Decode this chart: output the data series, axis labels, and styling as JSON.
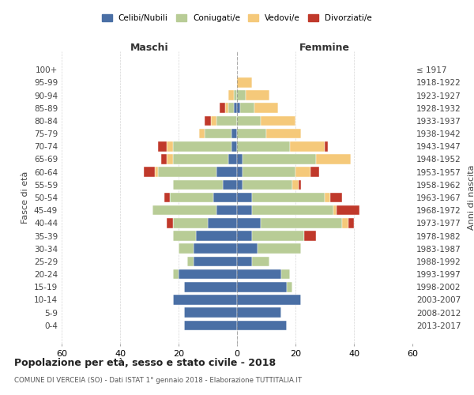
{
  "age_groups": [
    "0-4",
    "5-9",
    "10-14",
    "15-19",
    "20-24",
    "25-29",
    "30-34",
    "35-39",
    "40-44",
    "45-49",
    "50-54",
    "55-59",
    "60-64",
    "65-69",
    "70-74",
    "75-79",
    "80-84",
    "85-89",
    "90-94",
    "95-99",
    "100+"
  ],
  "birth_years": [
    "2013-2017",
    "2008-2012",
    "2003-2007",
    "1998-2002",
    "1993-1997",
    "1988-1992",
    "1983-1987",
    "1978-1982",
    "1973-1977",
    "1968-1972",
    "1963-1967",
    "1958-1962",
    "1953-1957",
    "1948-1952",
    "1943-1947",
    "1938-1942",
    "1933-1937",
    "1928-1932",
    "1923-1927",
    "1918-1922",
    "≤ 1917"
  ],
  "colors": {
    "celibi": "#4a6fa5",
    "coniugati": "#b8cc96",
    "vedovi": "#f5c97a",
    "divorziati": "#c0392b"
  },
  "maschi": {
    "celibi": [
      18,
      18,
      22,
      18,
      20,
      15,
      15,
      14,
      10,
      7,
      8,
      5,
      7,
      3,
      2,
      2,
      0,
      1,
      0,
      0,
      0
    ],
    "coniugati": [
      0,
      0,
      0,
      0,
      2,
      2,
      5,
      8,
      12,
      22,
      15,
      17,
      20,
      19,
      20,
      9,
      7,
      2,
      1,
      0,
      0
    ],
    "vedovi": [
      0,
      0,
      0,
      0,
      0,
      0,
      0,
      0,
      0,
      0,
      0,
      0,
      1,
      2,
      2,
      2,
      2,
      1,
      2,
      0,
      0
    ],
    "divorziati": [
      0,
      0,
      0,
      0,
      0,
      0,
      0,
      0,
      2,
      0,
      2,
      0,
      4,
      2,
      3,
      0,
      2,
      2,
      0,
      0,
      0
    ]
  },
  "femmine": {
    "celibi": [
      17,
      15,
      22,
      17,
      15,
      5,
      7,
      5,
      8,
      5,
      5,
      2,
      2,
      2,
      0,
      0,
      0,
      1,
      0,
      0,
      0
    ],
    "coniugati": [
      0,
      0,
      0,
      2,
      3,
      6,
      15,
      18,
      28,
      28,
      25,
      17,
      18,
      25,
      18,
      10,
      8,
      5,
      3,
      0,
      0
    ],
    "vedovi": [
      0,
      0,
      0,
      0,
      0,
      0,
      0,
      0,
      2,
      1,
      2,
      2,
      5,
      12,
      12,
      12,
      12,
      8,
      8,
      5,
      0
    ],
    "divorziati": [
      0,
      0,
      0,
      0,
      0,
      0,
      0,
      4,
      2,
      8,
      4,
      1,
      3,
      0,
      1,
      0,
      0,
      0,
      0,
      0,
      0
    ]
  },
  "xlim": 60,
  "title": "Popolazione per età, sesso e stato civile - 2018",
  "subtitle": "COMUNE DI VERCEIA (SO) - Dati ISTAT 1° gennaio 2018 - Elaborazione TUTTITALIA.IT",
  "ylabel_left": "Fasce di età",
  "ylabel_right": "Anni di nascita",
  "xlabel_left": "Maschi",
  "xlabel_right": "Femmine",
  "legend_labels": [
    "Celibi/Nubili",
    "Coniugati/e",
    "Vedovi/e",
    "Divorziati/e"
  ],
  "background_color": "#ffffff",
  "grid_color": "#cccccc"
}
